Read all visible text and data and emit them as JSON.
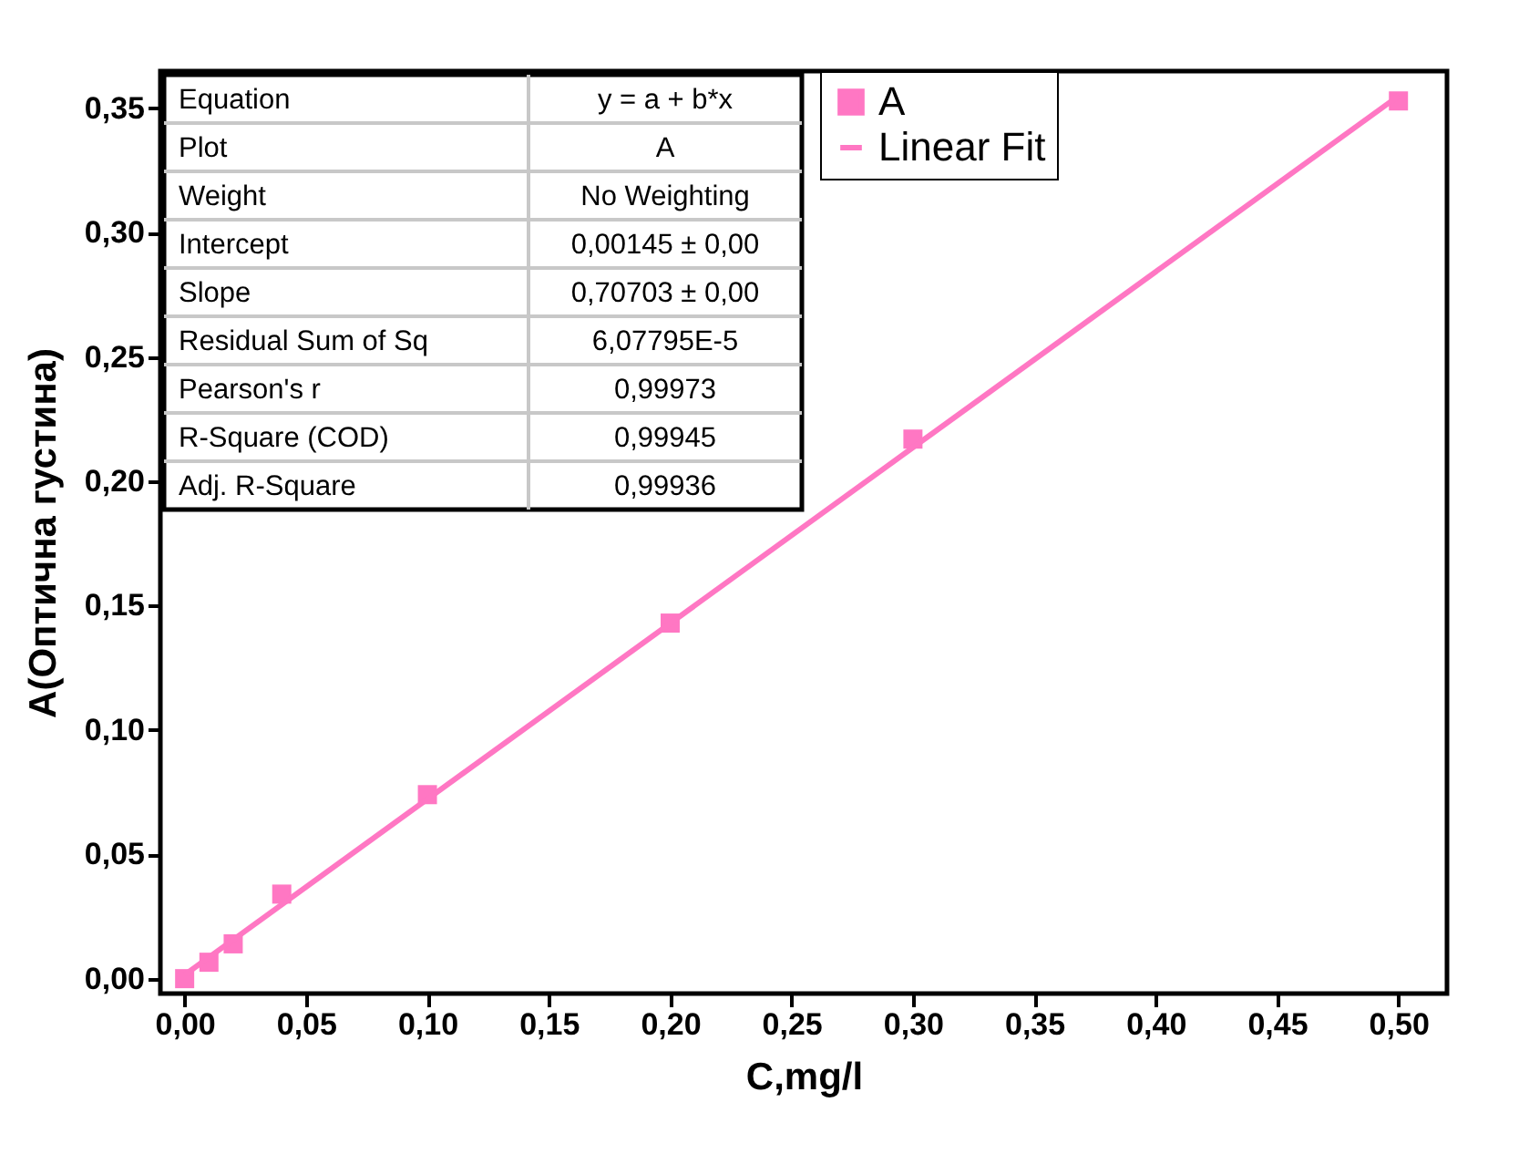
{
  "chart_data": {
    "type": "scatter",
    "xlabel": "C,mg/l",
    "ylabel": "A(Оптична густина)",
    "x": [
      0,
      0.01,
      0.02,
      0.04,
      0.1,
      0.2,
      0.3,
      0.5
    ],
    "series": [
      {
        "name": "A",
        "type": "scatter",
        "color": "#ff77c3",
        "marker": "square",
        "values": [
          0,
          0.0066,
          0.014,
          0.034,
          0.074,
          0.143,
          0.217,
          0.353
        ]
      },
      {
        "name": "Linear Fit",
        "type": "line",
        "color": "#ff77c3",
        "marker": "none",
        "line_style": "solid",
        "x": [
          0,
          0.5
        ],
        "values": [
          0.0015,
          0.355
        ]
      }
    ],
    "xlim": [
      -0.01,
      0.52
    ],
    "xticks": [
      {
        "value": 0,
        "label": "0,00"
      },
      {
        "value": 0.05,
        "label": "0,05"
      },
      {
        "value": 0.1,
        "label": "0,10"
      },
      {
        "value": 0.15,
        "label": "0,15"
      },
      {
        "value": 0.2,
        "label": "0,20"
      },
      {
        "value": 0.25,
        "label": "0,25"
      },
      {
        "value": 0.3,
        "label": "0,30"
      },
      {
        "value": 0.35,
        "label": "0,35"
      },
      {
        "value": 0.4,
        "label": "0,40"
      },
      {
        "value": 0.45,
        "label": "0,45"
      },
      {
        "value": 0.5,
        "label": "0,50"
      }
    ],
    "ylim": [
      -0.006,
      0.365
    ],
    "yticks": [
      {
        "value": 0,
        "label": "0,00"
      },
      {
        "value": 0.05,
        "label": "0,05"
      },
      {
        "value": 0.1,
        "label": "0,10"
      },
      {
        "value": 0.15,
        "label": "0,15"
      },
      {
        "value": 0.2,
        "label": "0,20"
      },
      {
        "value": 0.25,
        "label": "0,25"
      },
      {
        "value": 0.3,
        "label": "0,30"
      },
      {
        "value": 0.35,
        "label": "0,35"
      }
    ],
    "grid": false,
    "legend": "top right",
    "annotations": [
      "Equation",
      "y = a + b*x",
      "Plot",
      "A",
      "Weight",
      "No Weighting",
      "Intercept",
      "0,00145 ± 0,00",
      "Slope",
      "0,70703 ± 0,00",
      "Residual Sum of Sq",
      "6,07795E-5",
      "Pearson's r",
      "0,99973",
      "R-Square (COD)",
      "0,99945",
      "Adj. R-Square",
      "0,99936"
    ]
  }
}
